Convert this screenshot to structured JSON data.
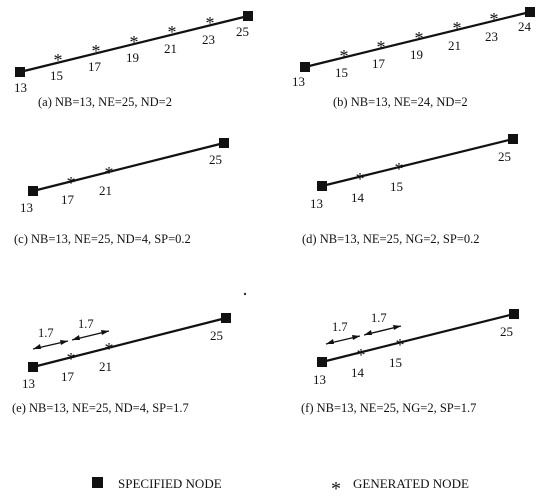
{
  "panels": [
    {
      "caption": "(a) NB=13, NE=25, ND=2",
      "specified": [
        {
          "label": "13"
        },
        {
          "label": "25"
        }
      ],
      "generated": [
        {
          "label": "15"
        },
        {
          "label": "17"
        },
        {
          "label": "19"
        },
        {
          "label": "21"
        },
        {
          "label": "23"
        }
      ],
      "spacing_labels": []
    },
    {
      "caption": "(b) NB=13, NE=24, ND=2",
      "specified": [
        {
          "label": "13"
        },
        {
          "label": "24"
        }
      ],
      "generated": [
        {
          "label": "15"
        },
        {
          "label": "17"
        },
        {
          "label": "19"
        },
        {
          "label": "21"
        },
        {
          "label": "23"
        }
      ],
      "spacing_labels": []
    },
    {
      "caption": "(c) NB=13, NE=25, ND=4, SP=0.2",
      "specified": [
        {
          "label": "13"
        },
        {
          "label": "25"
        }
      ],
      "generated": [
        {
          "label": "17"
        },
        {
          "label": "21"
        }
      ],
      "spacing_labels": []
    },
    {
      "caption": "(d) NB=13, NE=25, NG=2, SP=0.2",
      "specified": [
        {
          "label": "13"
        },
        {
          "label": "25"
        }
      ],
      "generated": [
        {
          "label": "14"
        },
        {
          "label": "15"
        }
      ],
      "spacing_labels": []
    },
    {
      "caption": "(e) NB=13, NE=25, ND=4, SP=1.7",
      "specified": [
        {
          "label": "13"
        },
        {
          "label": "25"
        }
      ],
      "generated": [
        {
          "label": "17"
        },
        {
          "label": "21"
        }
      ],
      "spacing_labels": [
        "1.7",
        "1.7"
      ]
    },
    {
      "caption": "(f) NB=13, NE=25, NG=2, SP=1.7",
      "specified": [
        {
          "label": "13"
        },
        {
          "label": "25"
        }
      ],
      "generated": [
        {
          "label": "14"
        },
        {
          "label": "15"
        }
      ],
      "spacing_labels": [
        "1.7",
        "1.7"
      ]
    }
  ],
  "legend": {
    "specified_label": "SPECIFIED NODE",
    "generated_label": "GENERATED NODE",
    "specified_icon": "filled-square-icon",
    "generated_icon": "asterisk-icon"
  }
}
